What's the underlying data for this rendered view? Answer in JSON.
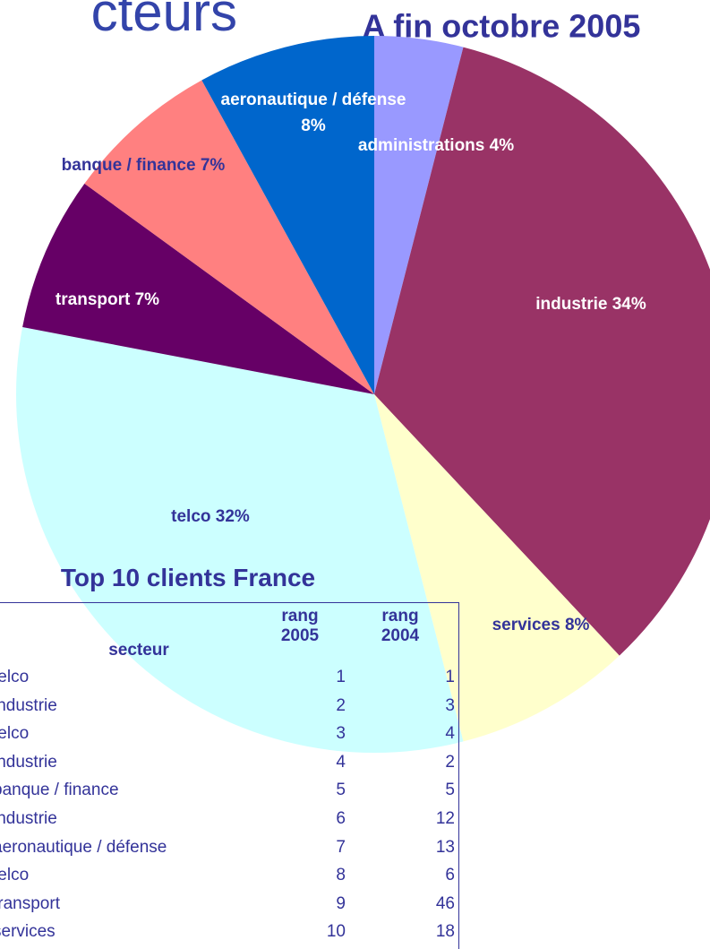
{
  "heading": "cteurs",
  "chart_data": {
    "type": "pie",
    "title": "A fin octobre 2005",
    "categories": [
      "administrations",
      "industrie",
      "services",
      "telco",
      "transport",
      "banque / finance",
      "aeronautique / défense"
    ],
    "values": [
      4,
      34,
      8,
      32,
      7,
      7,
      8
    ],
    "value_labels": [
      "4%",
      "34%",
      "8%",
      "32%",
      "7%",
      "7%",
      "8%"
    ],
    "colors": [
      "#9999ff",
      "#993366",
      "#ffffcc",
      "#ccffff",
      "#660066",
      "#ff8080",
      "#0066cc"
    ]
  },
  "table": {
    "title": "Top 10 clients France",
    "columns": [
      "secteur",
      "rang 2005",
      "rang 2004"
    ],
    "rows": [
      [
        "telco",
        1,
        1
      ],
      [
        "industrie",
        2,
        3
      ],
      [
        "telco",
        3,
        4
      ],
      [
        "industrie",
        4,
        2
      ],
      [
        "banque / finance",
        5,
        5
      ],
      [
        "industrie",
        6,
        12
      ],
      [
        "aeronautique / défense",
        7,
        13
      ],
      [
        "telco",
        8,
        6
      ],
      [
        "transport",
        9,
        46
      ],
      [
        "services",
        10,
        18
      ]
    ]
  }
}
